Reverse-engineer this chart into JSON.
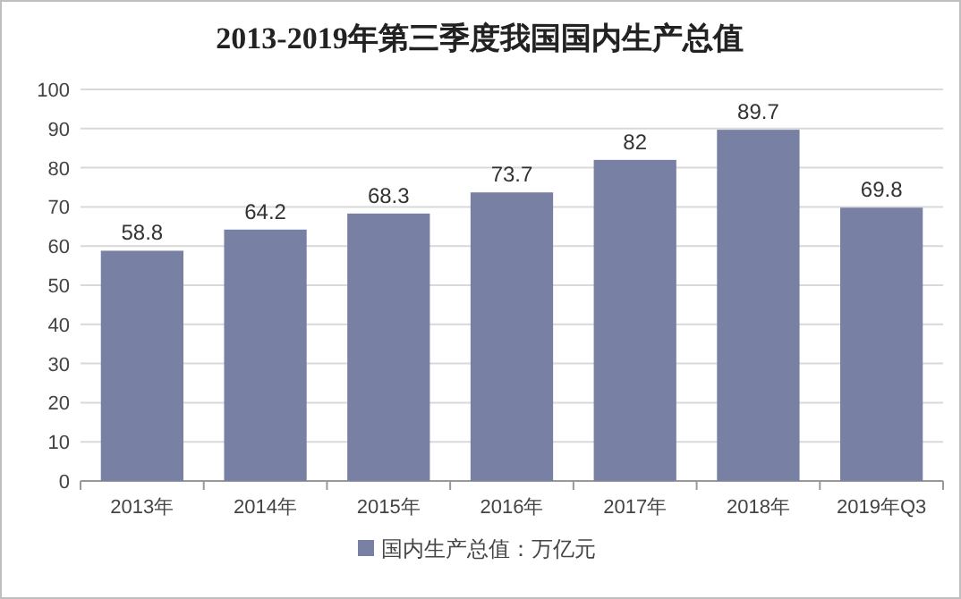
{
  "chart_data": {
    "type": "bar",
    "title": "2013-2019年第三季度我国国内生产总值",
    "categories": [
      "2013年",
      "2014年",
      "2015年",
      "2016年",
      "2017年",
      "2018年",
      "2019年Q3"
    ],
    "series": [
      {
        "name": "国内生产总值：万亿元",
        "color": "#7881a4",
        "values": [
          58.8,
          64.2,
          68.3,
          73.7,
          82,
          89.7,
          69.8
        ]
      }
    ],
    "ylim": [
      0,
      100
    ],
    "yticks": [
      0,
      10,
      20,
      30,
      40,
      50,
      60,
      70,
      80,
      90,
      100
    ],
    "grid": "y",
    "legend": "bottom",
    "data_labels": true
  }
}
